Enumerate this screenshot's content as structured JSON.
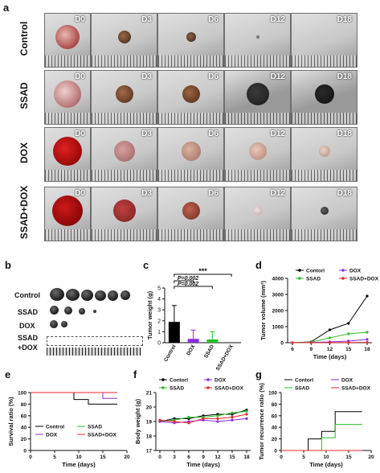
{
  "panel_a": {
    "letter": "a",
    "rows": [
      {
        "label": "Control",
        "days": [
          "D0",
          "D3",
          "D6",
          "D12",
          "D18"
        ],
        "color": "#e8e8e8"
      },
      {
        "label": "SSAD",
        "days": [
          "D0",
          "D3",
          "D6",
          "D12",
          "D18"
        ],
        "color": "#e8e8e8"
      },
      {
        "label": "DOX",
        "days": [
          "D0",
          "D3",
          "D6",
          "D12",
          "D18"
        ],
        "color": "#e8e8e8"
      },
      {
        "label": "SSAD+DOX",
        "days": [
          "D0",
          "D3",
          "D6",
          "D12",
          "D18"
        ],
        "color": "#e8e8e8"
      }
    ]
  },
  "panel_b": {
    "letter": "b",
    "labels": [
      "Control",
      "SSAD",
      "DOX",
      "SSAD",
      "+DOX"
    ]
  },
  "panel_c": {
    "letter": "c"
  },
  "panel_d": {
    "letter": "d"
  },
  "panel_e": {
    "letter": "e"
  },
  "panel_f": {
    "letter": "f"
  },
  "panel_g": {
    "letter": "g"
  },
  "chart_data": [
    {
      "type": "bar",
      "panel": "c",
      "categories": [
        "Control",
        "DOX",
        "SSAD",
        "SSAD+DOX"
      ],
      "values": [
        1.9,
        0.35,
        0.3,
        0.0
      ],
      "errors": [
        1.5,
        0.8,
        0.7,
        0.0
      ],
      "colors": [
        "#000000",
        "#8b2be2",
        "#2bbd2b",
        "#e8262b"
      ],
      "ylabel": "Tumor weight (g)",
      "ylim": [
        0,
        5
      ],
      "yticks": [
        0,
        1,
        2,
        3,
        4,
        5
      ],
      "annotations": [
        "P=0.002",
        "P=0.002",
        "***"
      ]
    },
    {
      "type": "line",
      "panel": "d",
      "x": [
        6,
        9,
        12,
        15,
        18
      ],
      "series": [
        {
          "name": "Contorl",
          "values": [
            0,
            50,
            800,
            1200,
            2900
          ],
          "color": "#000000"
        },
        {
          "name": "SSAD",
          "values": [
            0,
            30,
            300,
            550,
            650
          ],
          "color": "#2bbd2b"
        },
        {
          "name": "DOX",
          "values": [
            0,
            10,
            50,
            100,
            200
          ],
          "color": "#8b2be2"
        },
        {
          "name": "SSAD+DOX",
          "values": [
            0,
            0,
            5,
            10,
            20
          ],
          "color": "#e8262b"
        }
      ],
      "xlabel": "Time (days)",
      "ylabel": "Tumor volume (mm³)",
      "ylim": [
        0,
        4000
      ],
      "yticks": [
        0,
        1000,
        2000,
        3000,
        4000
      ]
    },
    {
      "type": "line",
      "panel": "e",
      "step": true,
      "series": [
        {
          "name": "Control",
          "points": [
            [
              0,
              100
            ],
            [
              9,
              100
            ],
            [
              9,
              88
            ],
            [
              12,
              88
            ],
            [
              12,
              80
            ],
            [
              18,
              80
            ]
          ],
          "color": "#000000"
        },
        {
          "name": "DOX",
          "points": [
            [
              0,
              100
            ],
            [
              15,
              100
            ],
            [
              15,
              90
            ],
            [
              18,
              90
            ]
          ],
          "color": "#8b2be2"
        },
        {
          "name": "SSAD",
          "points": [
            [
              0,
              100
            ],
            [
              18,
              100
            ]
          ],
          "color": "#2bbd2b"
        },
        {
          "name": "SSAD+DOX",
          "points": [
            [
              0,
              100
            ],
            [
              18,
              100
            ]
          ],
          "color": "#e8262b"
        }
      ],
      "xlabel": "Time (days)",
      "ylabel": "Survival ratio (%)",
      "xlim": [
        0,
        20
      ],
      "ylim": [
        0,
        100
      ],
      "xticks": [
        0,
        5,
        10,
        15,
        20
      ],
      "yticks": [
        0,
        20,
        40,
        60,
        80,
        100
      ]
    },
    {
      "type": "line",
      "panel": "f",
      "x": [
        0,
        3,
        6,
        9,
        12,
        15,
        18
      ],
      "series": [
        {
          "name": "Contorl",
          "values": [
            19.0,
            19.2,
            19.2,
            19.4,
            19.5,
            19.5,
            19.8
          ],
          "color": "#000000"
        },
        {
          "name": "SSAD",
          "values": [
            19.0,
            19.1,
            19.3,
            19.3,
            19.4,
            19.6,
            19.7
          ],
          "color": "#2bbd2b"
        },
        {
          "name": "DOX",
          "values": [
            19.0,
            18.9,
            19.0,
            19.1,
            19.0,
            19.1,
            19.2
          ],
          "color": "#8b2be2"
        },
        {
          "name": "SSAD+DOX",
          "values": [
            19.1,
            19.0,
            18.9,
            19.2,
            19.2,
            19.3,
            19.5
          ],
          "color": "#e8262b"
        }
      ],
      "xlabel": "Time (days)",
      "ylabel": "Body weight (g)",
      "ylim": [
        17,
        21
      ],
      "yticks": [
        17,
        18,
        19,
        20,
        21
      ],
      "xticks": [
        0,
        3,
        6,
        9,
        12,
        15,
        18
      ]
    },
    {
      "type": "line",
      "panel": "g",
      "step": true,
      "series": [
        {
          "name": "Contorl",
          "points": [
            [
              0,
              0
            ],
            [
              6,
              0
            ],
            [
              6,
              20
            ],
            [
              9,
              20
            ],
            [
              9,
              33
            ],
            [
              12,
              33
            ],
            [
              12,
              67
            ],
            [
              18,
              67
            ]
          ],
          "color": "#000000"
        },
        {
          "name": "SSAD",
          "points": [
            [
              0,
              0
            ],
            [
              9,
              0
            ],
            [
              9,
              22
            ],
            [
              12,
              22
            ],
            [
              12,
              45
            ],
            [
              18,
              45
            ]
          ],
          "color": "#2bbd2b"
        },
        {
          "name": "DOX",
          "points": [
            [
              0,
              0
            ],
            [
              18,
              0
            ]
          ],
          "color": "#8b2be2"
        },
        {
          "name": "SSAD+DOX",
          "points": [
            [
              0,
              0
            ],
            [
              18,
              0
            ]
          ],
          "color": "#e8262b"
        }
      ],
      "xlabel": "Time (days)",
      "ylabel": "Tumor recurrence ratio (%)",
      "xlim": [
        0,
        20
      ],
      "ylim": [
        0,
        100
      ],
      "xticks": [
        0,
        5,
        10,
        15,
        20
      ],
      "yticks": [
        0,
        20,
        40,
        60,
        80,
        100
      ]
    }
  ]
}
